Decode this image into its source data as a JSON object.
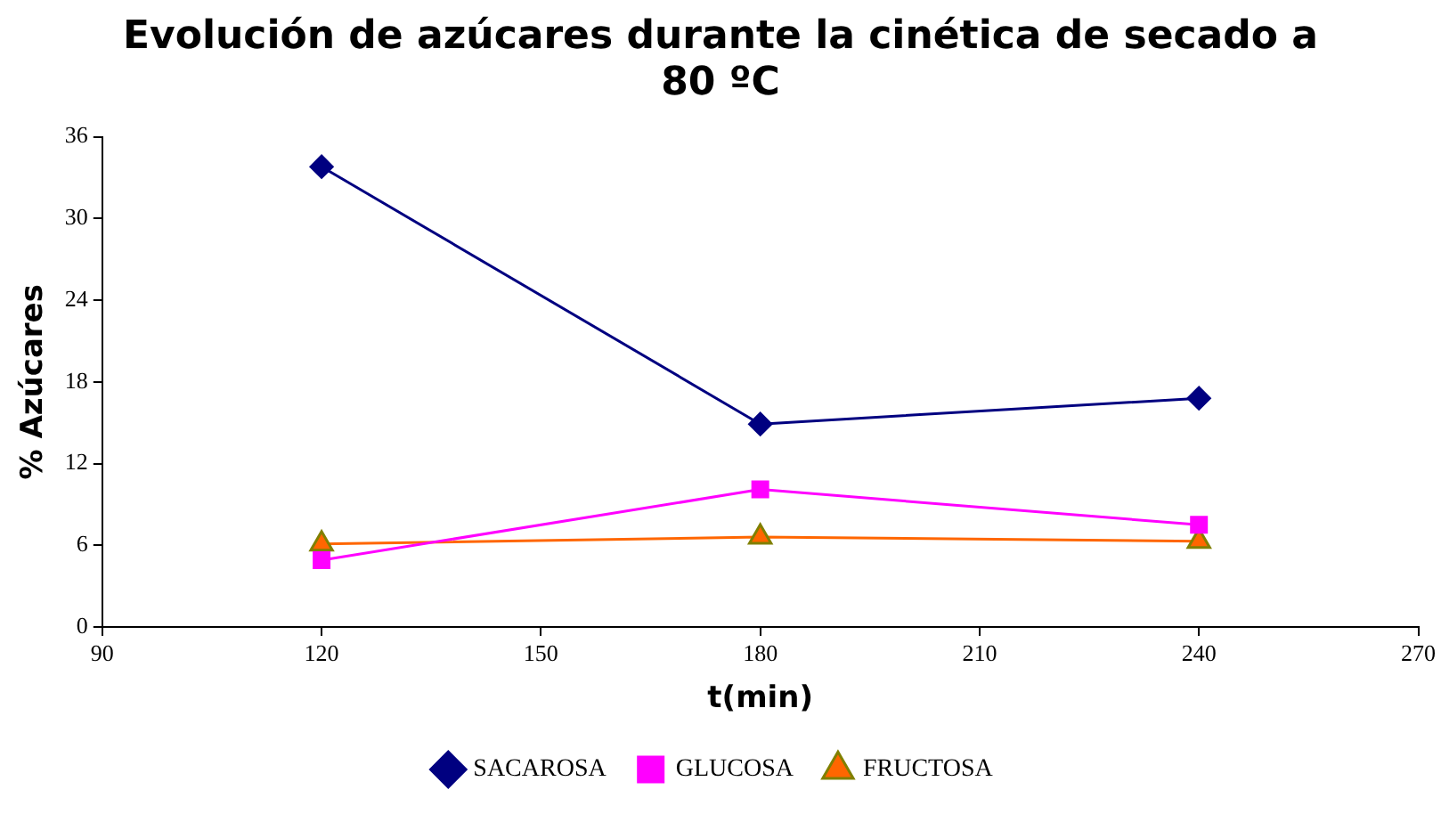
{
  "chart_data": {
    "type": "line",
    "title": "Evolución de azúcares durante la cinética de secado a 80 ºC",
    "xlabel": "t(min)",
    "ylabel": "% Azúcares",
    "x": [
      120,
      180,
      240
    ],
    "xlim": [
      90,
      270
    ],
    "xticks": [
      90,
      120,
      150,
      180,
      210,
      240,
      270
    ],
    "ylim": [
      0,
      36
    ],
    "yticks": [
      0,
      6,
      12,
      18,
      24,
      30,
      36
    ],
    "grid": false,
    "legend": "bottom",
    "series": [
      {
        "name": "SACAROSA",
        "color": "#000080",
        "marker": "diamond",
        "values": [
          33.8,
          14.9,
          16.8
        ]
      },
      {
        "name": "GLUCOSA",
        "color": "#ff00ff",
        "marker": "square",
        "values": [
          4.9,
          10.1,
          7.5
        ]
      },
      {
        "name": "FRUCTOSA",
        "color": "#ff6600",
        "marker": "triangle",
        "values": [
          6.1,
          6.6,
          6.3
        ]
      }
    ]
  }
}
